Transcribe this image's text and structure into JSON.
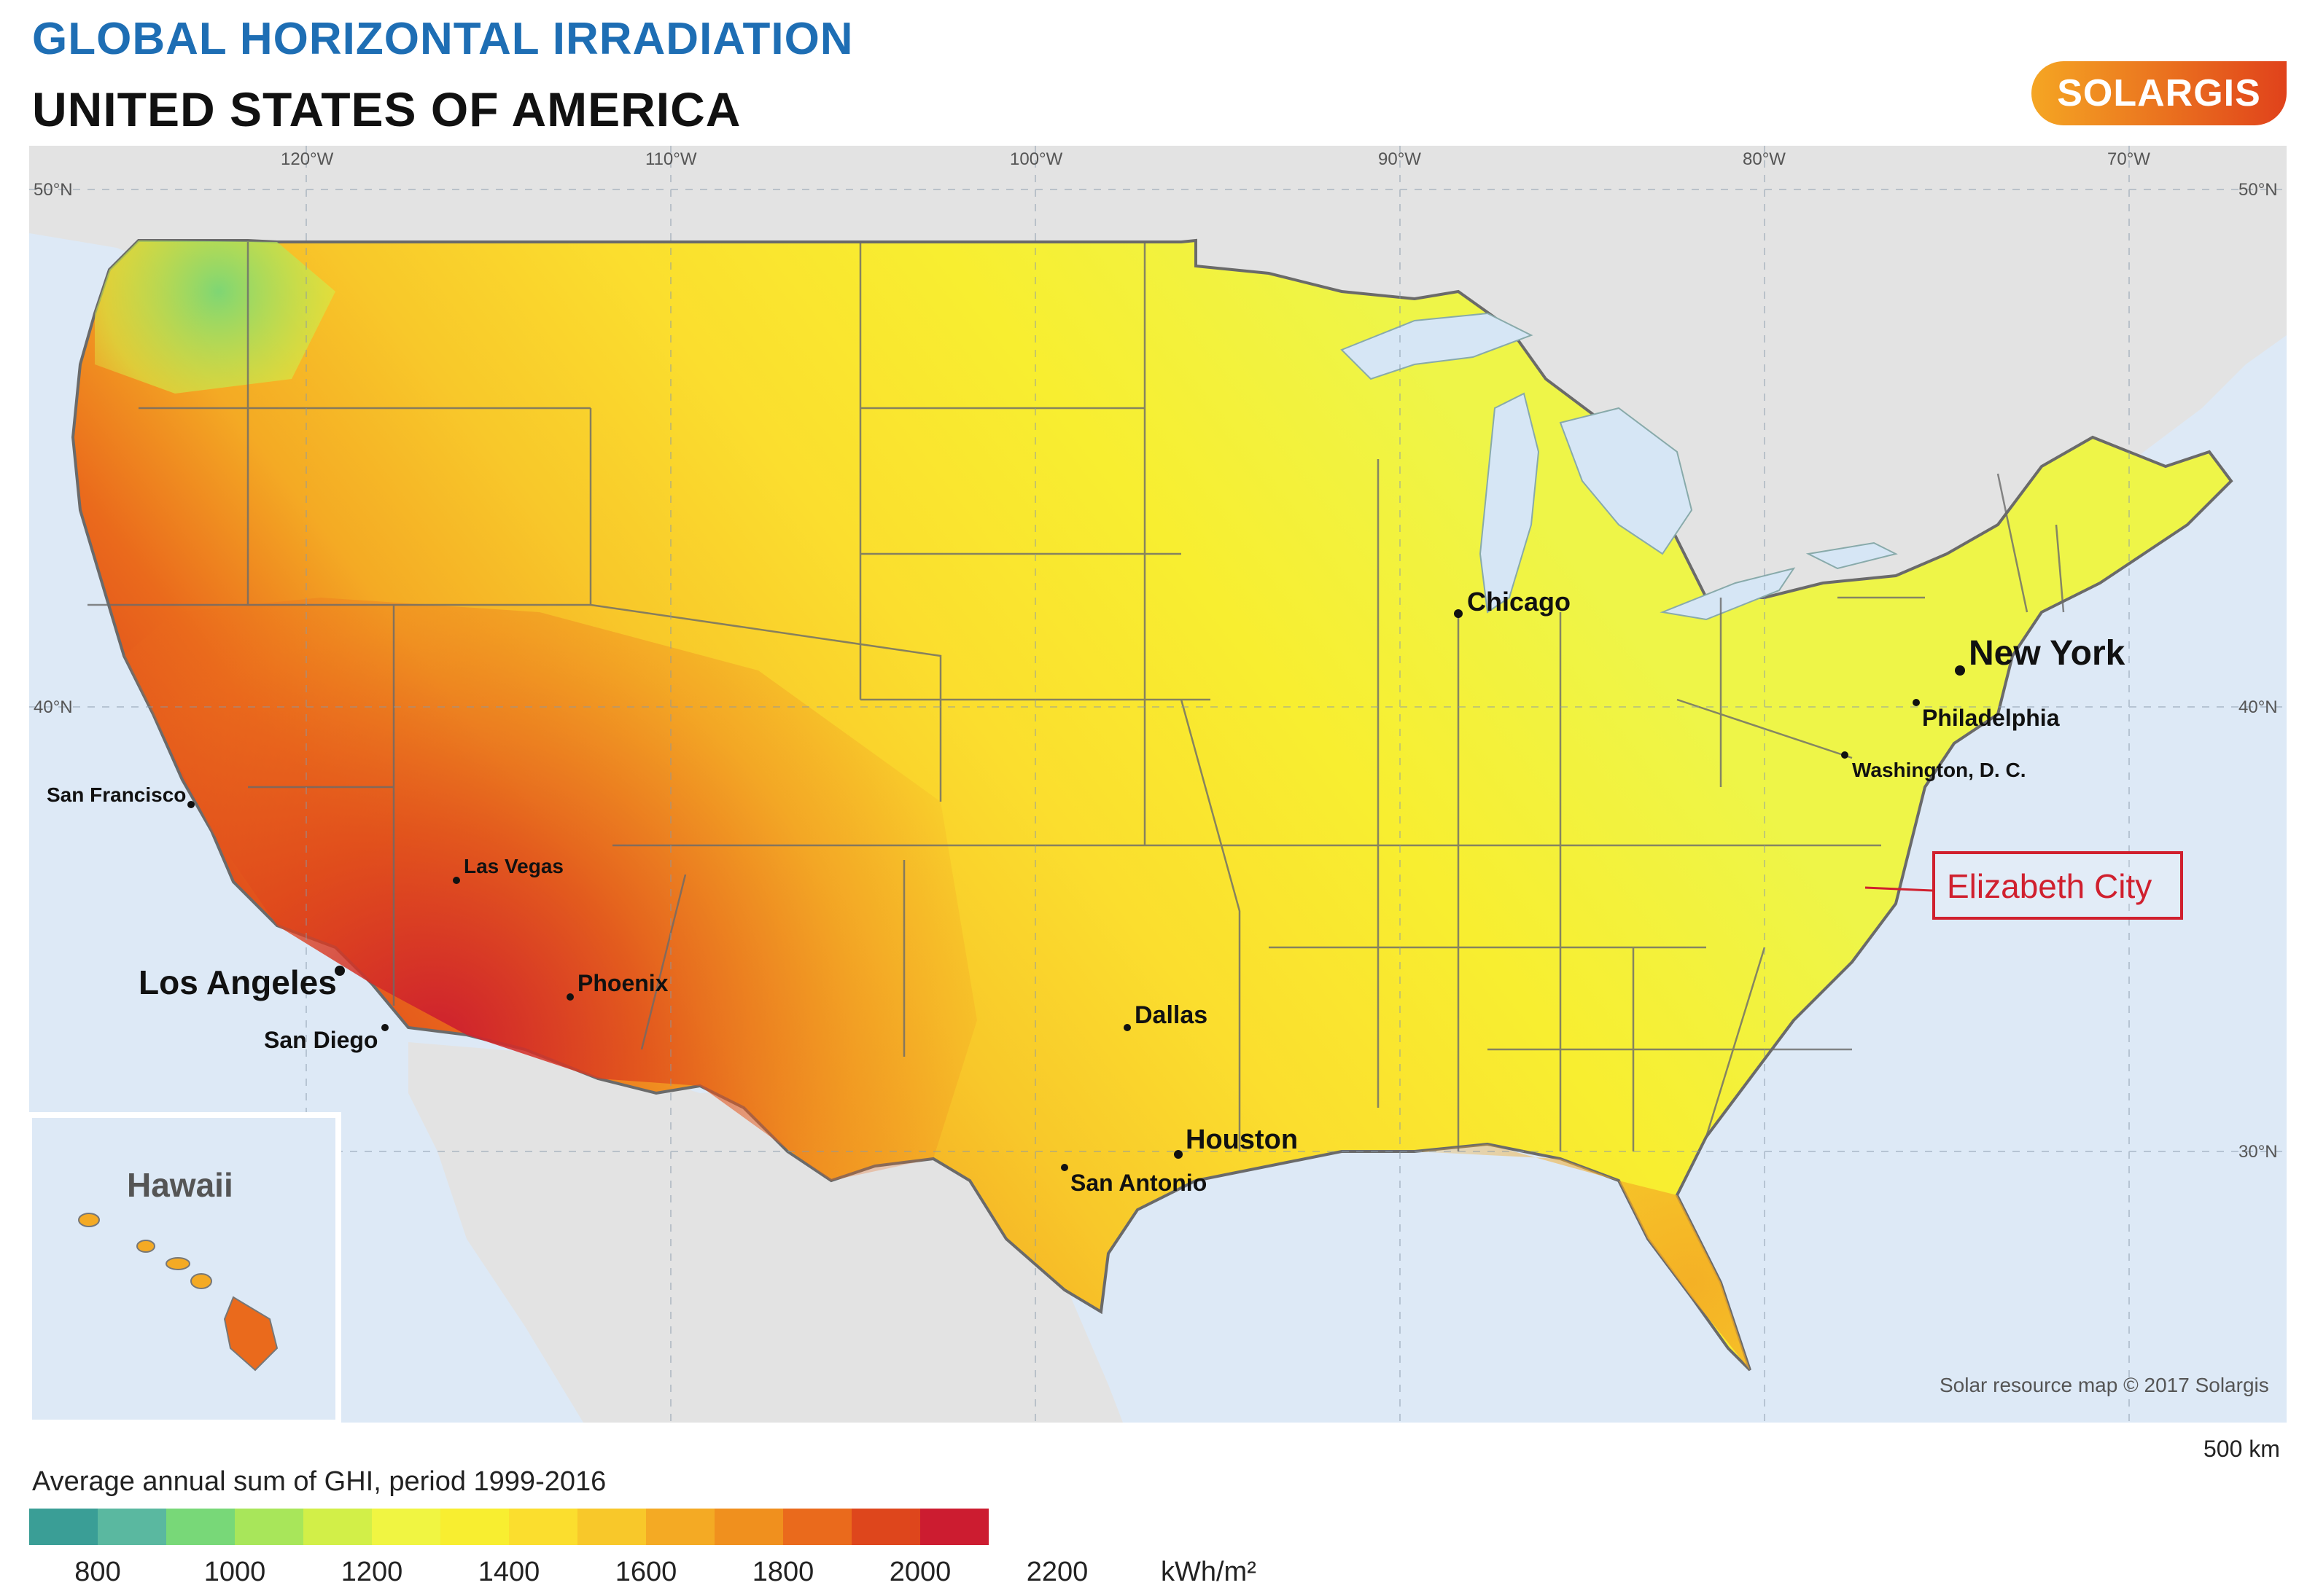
{
  "header": {
    "title": "GLOBAL HORIZONTAL IRRADIATION",
    "subtitle": "UNITED STATES OF AMERICA",
    "title_color": "#1e6eb4",
    "subtitle_color": "#111111"
  },
  "logo": {
    "text": "SOLARGIS",
    "color_start": "#f5a623",
    "color_end": "#e0421b"
  },
  "graticule": {
    "longitudes": [
      "120°W",
      "110°W",
      "100°W",
      "90°W",
      "80°W",
      "70°W"
    ],
    "latitudes": [
      "50°N",
      "40°N",
      "30°N"
    ]
  },
  "cities": [
    {
      "name": "Chicago"
    },
    {
      "name": "New York"
    },
    {
      "name": "Philadelphia"
    },
    {
      "name": "Washington, D. C."
    },
    {
      "name": "San Francisco"
    },
    {
      "name": "Las Vegas"
    },
    {
      "name": "Los Angeles"
    },
    {
      "name": "San Diego"
    },
    {
      "name": "Phoenix"
    },
    {
      "name": "Dallas"
    },
    {
      "name": "Houston"
    },
    {
      "name": "San Antonio"
    }
  ],
  "highlight": {
    "label": "Elizabeth City",
    "color": "#d0202e"
  },
  "inset": {
    "label": "Hawaii"
  },
  "credit": "Solar resource map © 2017 Solargis",
  "scale_bar": {
    "label": "500 km"
  },
  "legend": {
    "title": "Average annual sum of GHI, period 1999-2016",
    "unit": "kWh/m²",
    "ticks": [
      "800",
      "1000",
      "1200",
      "1400",
      "1600",
      "1800",
      "2000",
      "2200"
    ],
    "colors": [
      "#3a9e96",
      "#5ab8a0",
      "#78d878",
      "#a8e65a",
      "#d2ef48",
      "#f0f542",
      "#f8ee30",
      "#fbde2e",
      "#f8c82a",
      "#f4aa24",
      "#f0901e",
      "#ea6a1c",
      "#de461c",
      "#cc1c30"
    ]
  },
  "colors": {
    "sea": "#dde9f6",
    "land_other": "#e3e3e3",
    "border": "#6a6a6a",
    "lake": "#d6e6f5"
  }
}
